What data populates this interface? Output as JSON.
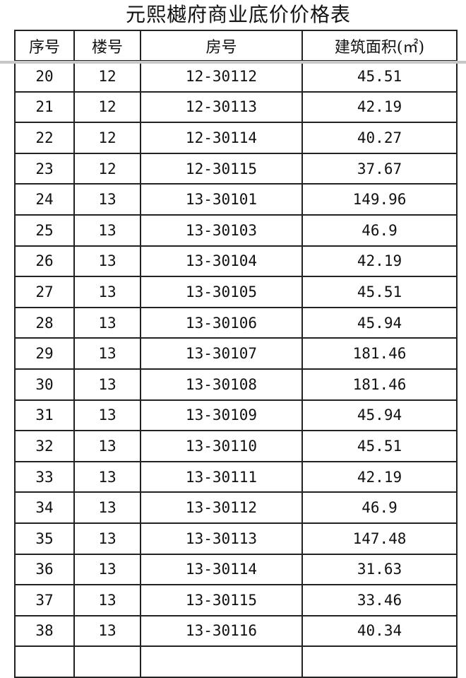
{
  "title": "元熙樾府商业底价价格表",
  "headers": [
    "序号",
    "楼号",
    "房号",
    "建筑面积(㎡)"
  ],
  "rows": [
    [
      "20",
      "12",
      "12-30112",
      "45.51"
    ],
    [
      "21",
      "12",
      "12-30113",
      "42.19"
    ],
    [
      "22",
      "12",
      "12-30114",
      "40.27"
    ],
    [
      "23",
      "12",
      "12-30115",
      "37.67"
    ],
    [
      "24",
      "13",
      "13-30101",
      "149.96"
    ],
    [
      "25",
      "13",
      "13-30103",
      "46.9"
    ],
    [
      "26",
      "13",
      "13-30104",
      "42.19"
    ],
    [
      "27",
      "13",
      "13-30105",
      "45.51"
    ],
    [
      "28",
      "13",
      "13-30106",
      "45.94"
    ],
    [
      "29",
      "13",
      "13-30107",
      "181.46"
    ],
    [
      "30",
      "13",
      "13-30108",
      "181.46"
    ],
    [
      "31",
      "13",
      "13-30109",
      "45.94"
    ],
    [
      "32",
      "13",
      "13-30110",
      "45.51"
    ],
    [
      "33",
      "13",
      "13-30111",
      "42.19"
    ],
    [
      "34",
      "13",
      "13-30112",
      "46.9"
    ],
    [
      "35",
      "13",
      "13-30113",
      "147.48"
    ],
    [
      "36",
      "13",
      "13-30114",
      "31.63"
    ],
    [
      "37",
      "13",
      "13-30115",
      "33.46"
    ],
    [
      "38",
      "13",
      "13-30116",
      "40.34"
    ]
  ]
}
